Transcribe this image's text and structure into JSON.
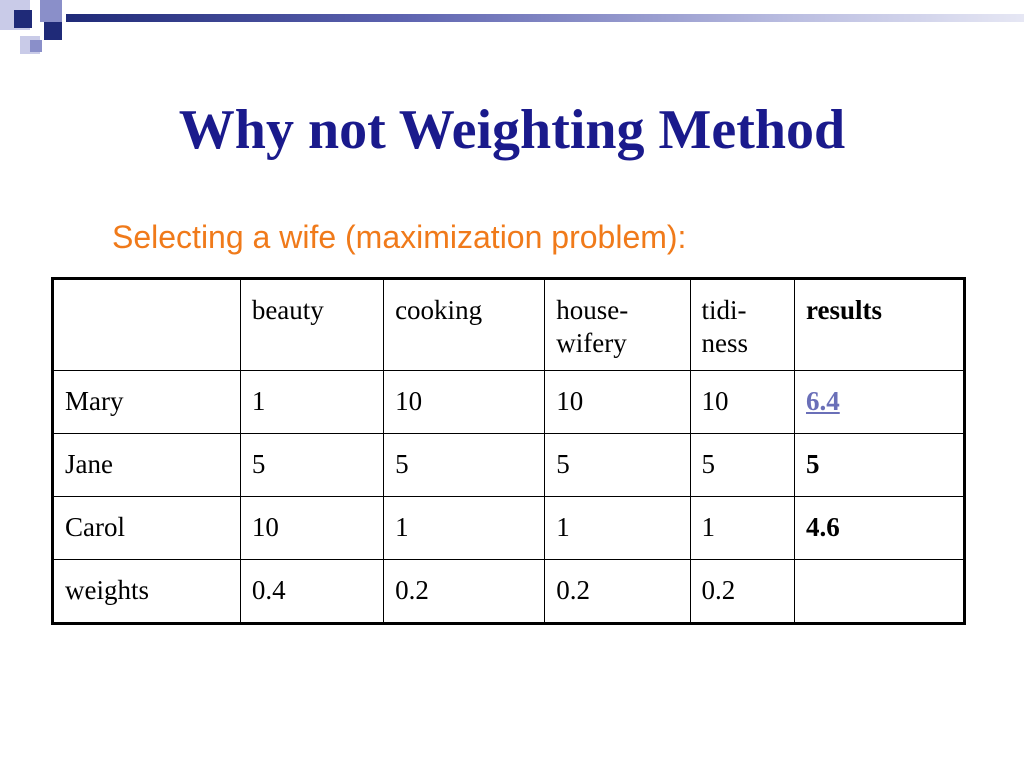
{
  "slide": {
    "title": "Why not Weighting Method",
    "subtitle": "Selecting a wife (maximization problem):"
  },
  "table": {
    "headers": [
      "",
      "beauty",
      "cooking",
      "house-\nwifery",
      "tidi-\nness",
      "results"
    ],
    "rows": [
      {
        "label": "Mary",
        "values": [
          "1",
          "10",
          "10",
          "10"
        ],
        "result": "6.4"
      },
      {
        "label": "Jane",
        "values": [
          "5",
          "5",
          "5",
          "5"
        ],
        "result": "5"
      },
      {
        "label": "Carol",
        "values": [
          "10",
          "1",
          "1",
          "1"
        ],
        "result": "4.6"
      },
      {
        "label": "weights",
        "values": [
          "0.4",
          "0.2",
          "0.2",
          "0.2"
        ],
        "result": ""
      }
    ]
  },
  "colors": {
    "title": "#1a1a8c",
    "subtitle": "#f07a1a",
    "link": "#6a6fb8",
    "accent": "#1f2a78"
  }
}
